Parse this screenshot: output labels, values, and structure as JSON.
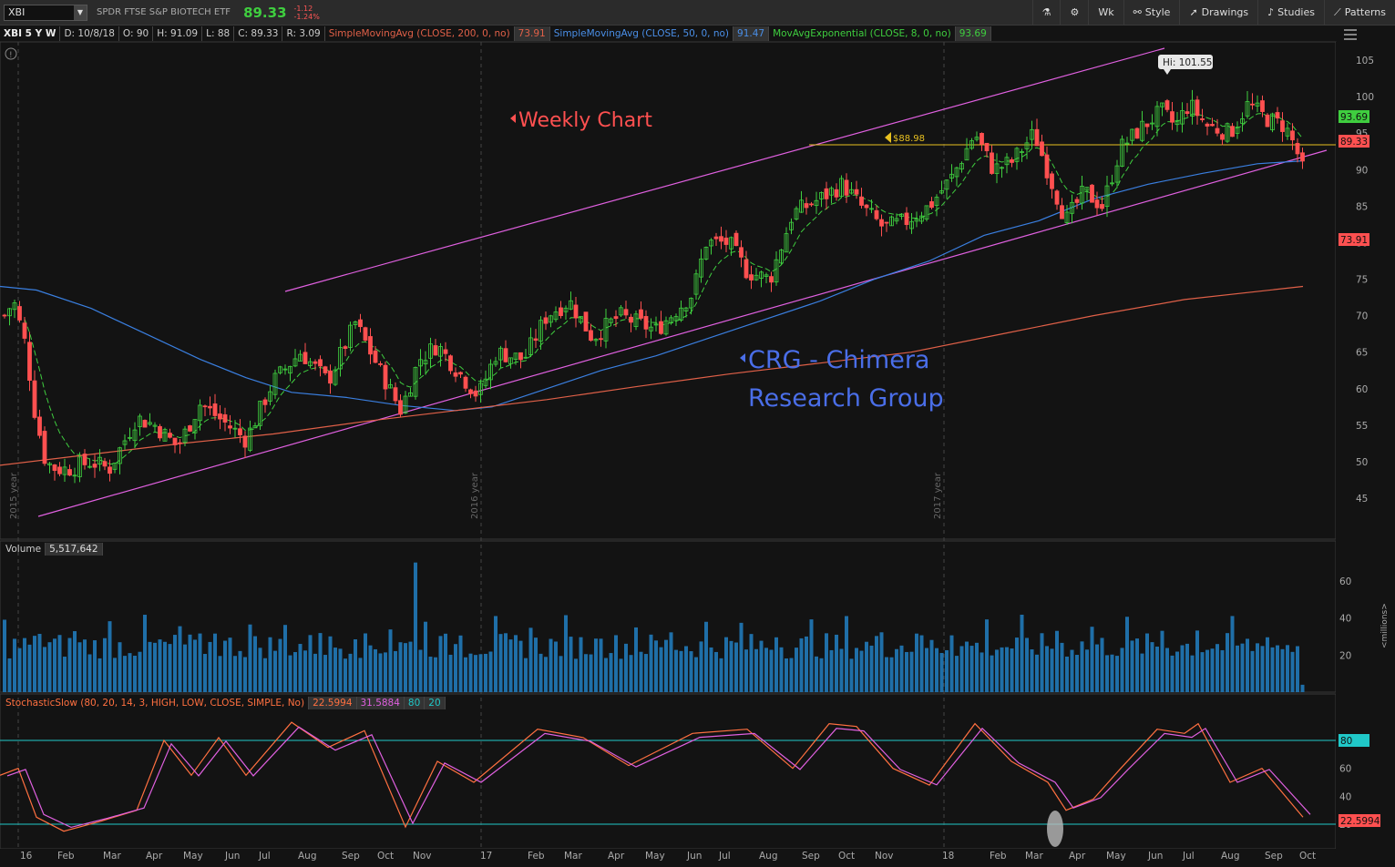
{
  "toolbar": {
    "symbol": "XBI",
    "name": "SPDR FTSE S&P BIOTECH ETF",
    "last": "89.33",
    "change": "-1.12",
    "change_pct": "-1.24%",
    "buttons": [
      {
        "label": "",
        "icon": "flask-icon"
      },
      {
        "label": "",
        "icon": "gear-icon"
      },
      {
        "label": "Wk",
        "icon": ""
      },
      {
        "label": "Style",
        "icon": "style-icon"
      },
      {
        "label": "Drawings",
        "icon": "cursor-icon"
      },
      {
        "label": "Studies",
        "icon": "studies-icon"
      },
      {
        "label": "Patterns",
        "icon": "patterns-icon"
      }
    ]
  },
  "infobar": {
    "ticker": "XBI 5 Y W",
    "date": "D: 10/8/18",
    "open": "O: 90",
    "high": "H: 91.09",
    "low": "L: 88",
    "close": "C: 89.33",
    "range": "R: 3.09",
    "sma200_label": "SimpleMovingAvg (CLOSE, 200, 0, no)",
    "sma200_value": "73.91",
    "sma50_label": "SimpleMovingAvg (CLOSE, 50, 0, no)",
    "sma50_value": "91.47",
    "ema_label": "MovAvgExponential (CLOSE, 8, 0, no)",
    "ema_value": "93.69"
  },
  "price_axis": {
    "ticks": [
      "105",
      "100",
      "95",
      "90",
      "85",
      "80",
      "75",
      "70",
      "65",
      "60",
      "55",
      "50",
      "45"
    ],
    "ema_tag": "93.69",
    "last_tag": "89.33",
    "sma200_tag": "73.91"
  },
  "annotations": {
    "weekly": "Weekly Chart",
    "crg1": "CRG - Chimera",
    "crg2": "Research Group",
    "hi": "Hi: 101.55",
    "price_line": "$88.98",
    "year2015": "2015 year",
    "year2016": "2016 year",
    "year2017": "2017 year"
  },
  "volume": {
    "label": "Volume",
    "value": "5,517,642",
    "ticks": [
      "60",
      "40",
      "20"
    ],
    "unit": "<millions>"
  },
  "stochastic": {
    "label": "StochasticSlow (80, 20, 14, 3, HIGH, LOW, CLOSE, SIMPLE, No)",
    "k": "22.5994",
    "d": "31.5884",
    "ob": "80",
    "os": "20",
    "ticks": [
      "60",
      "40",
      "20"
    ],
    "ob_tag": "80",
    "k_tag": "22.5994"
  },
  "x_labels": [
    "16",
    "Feb",
    "Mar",
    "Apr",
    "May",
    "Jun",
    "Jul",
    "Aug",
    "Sep",
    "Oct",
    "Nov",
    "17",
    "Feb",
    "Mar",
    "Apr",
    "May",
    "Jun",
    "Jul",
    "Aug",
    "Sep",
    "Oct",
    "Nov",
    "18",
    "Feb",
    "Mar",
    "Apr",
    "May",
    "Jun",
    "Jul",
    "Aug",
    "Sep",
    "Oct"
  ],
  "colors": {
    "up": "#3fce3f",
    "down": "#ff5050",
    "sma200": "#e06048",
    "sma50": "#3a7fe0",
    "ema": "#3fce3f",
    "channel": "#e060e0",
    "volume": "#1f6fa8",
    "stoch_k": "#ff7040",
    "stoch_d": "#e060e0",
    "guide": "#20c8c8",
    "priceline": "#e8c020"
  }
}
